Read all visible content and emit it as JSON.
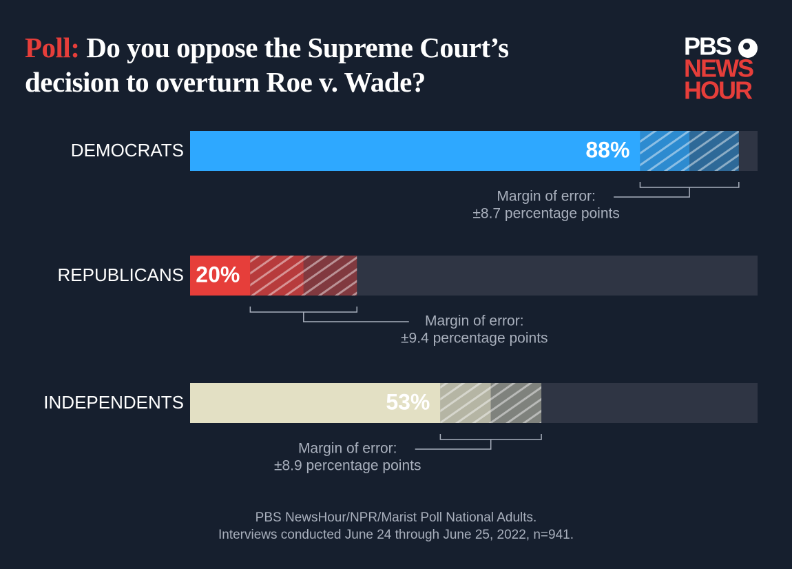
{
  "title_label": "Poll:",
  "title": "Do you oppose the Supreme Court’s decision to overturn Roe v. Wade?",
  "logo": [
    "PBS",
    "NEWS",
    "HOUR"
  ],
  "chart_data": {
    "type": "bar",
    "orientation": "horizontal",
    "categories": [
      "DEMOCRATS",
      "REPUBLICANS",
      "INDEPENDENTS"
    ],
    "values": [
      88,
      20,
      53
    ],
    "value_labels": [
      "88%",
      "20%",
      "53%"
    ],
    "moe": [
      8.7,
      9.4,
      8.9
    ],
    "moe_title": "Margin of error:",
    "moe_labels": [
      "±8.7 percentage points",
      "±9.4 percentage points",
      "±8.9 percentage points"
    ],
    "colors": [
      "#2ea8ff",
      "#e63e3a",
      "#e3e0c4"
    ],
    "xlim": [
      0,
      100
    ]
  },
  "source": [
    "PBS NewsHour/NPR/Marist Poll National Adults.",
    "Interviews conducted June 24 through June 25, 2022, n=941."
  ]
}
